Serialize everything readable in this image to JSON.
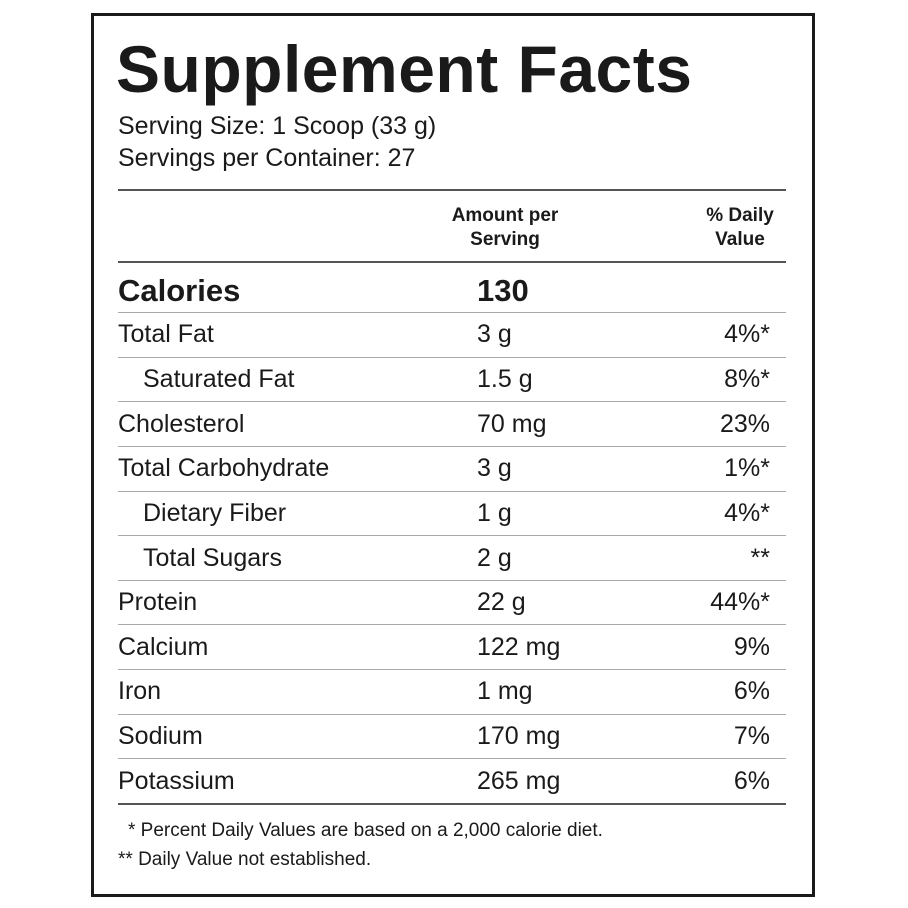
{
  "header": {
    "title": "Supplement Facts",
    "serving_size": "Serving Size: 1 Scoop (33 g)",
    "servings_per_container": "Servings per Container: 27"
  },
  "table": {
    "columns": [
      "Amount per Serving",
      "% Daily Value"
    ],
    "calories": {
      "name": "Calories",
      "amount": "130"
    },
    "rows": [
      {
        "name": "Total Fat",
        "amount": "3 g",
        "dv": "4%*",
        "subrows": [
          {
            "name": "Saturated Fat",
            "amount": "1.5 g",
            "dv": "8%*"
          }
        ]
      },
      {
        "name": "Cholesterol",
        "amount": "70 mg",
        "dv": "23%"
      },
      {
        "name": "Total Carbohydrate",
        "amount": "3 g",
        "dv": "1%*",
        "subrows": [
          {
            "name": "Dietary Fiber",
            "amount": "1 g",
            "dv": "4%*"
          },
          {
            "name": "Total Sugars",
            "amount": "2 g",
            "dv": "**"
          }
        ]
      },
      {
        "name": "Protein",
        "amount": "22 g",
        "dv": "44%*"
      },
      {
        "name": "Calcium",
        "amount": "122 mg",
        "dv": "9%"
      },
      {
        "name": "Iron",
        "amount": "1 mg",
        "dv": "6%"
      },
      {
        "name": "Sodium",
        "amount": "170 mg",
        "dv": "7%"
      },
      {
        "name": "Potassium",
        "amount": "265 mg",
        "dv": "6%"
      }
    ]
  },
  "footnotes": [
    "* Percent Daily Values are based on a 2,000 calorie diet.",
    "** Daily Value not established."
  ]
}
